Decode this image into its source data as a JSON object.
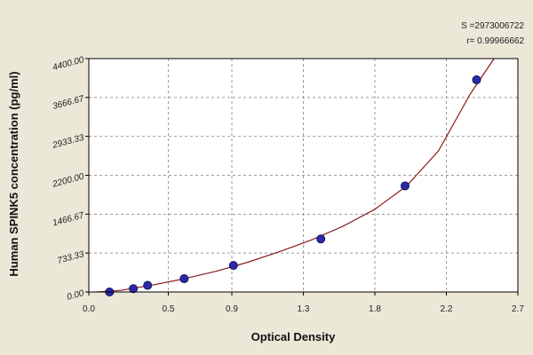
{
  "chart_data": {
    "type": "scatter",
    "xlabel": "Optical Density",
    "ylabel": "Human SPINK5 concentration (pg/ml)",
    "xlim": [
      0.0,
      2.7
    ],
    "ylim": [
      0,
      4400
    ],
    "x_ticks": [
      {
        "value": 0.0,
        "label": "0.0"
      },
      {
        "value": 0.5,
        "label": "0.5"
      },
      {
        "value": 0.9,
        "label": "0.9"
      },
      {
        "value": 1.35,
        "label": "1.3"
      },
      {
        "value": 1.8,
        "label": "1.8"
      },
      {
        "value": 2.25,
        "label": "2.2"
      },
      {
        "value": 2.7,
        "label": "2.7"
      }
    ],
    "y_ticks": [
      {
        "value": 0,
        "label": "0.00"
      },
      {
        "value": 733.33,
        "label": "733.33"
      },
      {
        "value": 1466.67,
        "label": "1466.67"
      },
      {
        "value": 2200,
        "label": "2200.00"
      },
      {
        "value": 2933.33,
        "label": "2933.33"
      },
      {
        "value": 3666.67,
        "label": "3666.67"
      },
      {
        "value": 4400,
        "label": "4400.00"
      }
    ],
    "grid": true,
    "points": {
      "x": [
        0.13,
        0.28,
        0.37,
        0.6,
        0.91,
        1.46,
        1.99,
        2.44
      ],
      "y": [
        0,
        62.5,
        125,
        250,
        500,
        1000,
        2000,
        4000
      ]
    },
    "curve": {
      "x": [
        0.05,
        0.2,
        0.4,
        0.6,
        0.8,
        1.0,
        1.2,
        1.4,
        1.6,
        1.8,
        2.0,
        2.2,
        2.4,
        2.55
      ],
      "y": [
        0,
        30,
        130,
        250,
        390,
        560,
        760,
        980,
        1240,
        1560,
        2000,
        2660,
        3730,
        4400
      ]
    },
    "stats": [
      {
        "label": "S =2973006722"
      },
      {
        "label": "r= 0.99966662"
      }
    ],
    "colors": {
      "background": "#ebe8d8",
      "plot_background": "#ffffff",
      "grid": "#9a9a9a",
      "curve": "#8b1a1a",
      "marker_fill": "#2a2aa8",
      "marker_stroke": "#12125e",
      "axis": "#000000"
    }
  }
}
